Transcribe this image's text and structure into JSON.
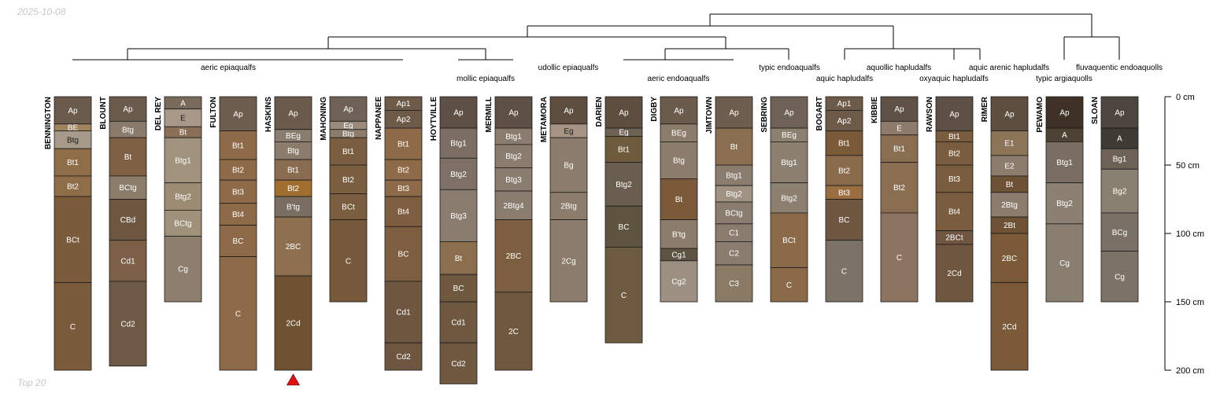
{
  "header": {
    "date": "2025-10-08"
  },
  "footer": {
    "note": "Top 20"
  },
  "chart_data": {
    "type": "soil-profile-sketch",
    "depth_unit": "cm",
    "depth_ticks": [
      {
        "value": 0,
        "label": "0 cm"
      },
      {
        "value": 50,
        "label": "50 cm"
      },
      {
        "value": 100,
        "label": "100 cm"
      },
      {
        "value": 150,
        "label": "150 cm"
      },
      {
        "value": 200,
        "label": "200 cm"
      }
    ],
    "depth_range": [
      0,
      200
    ],
    "truncated_marker_profile": "HASKINS",
    "profiles": [
      {
        "name": "BENNINGTON",
        "horizons": [
          [
            "Ap",
            0,
            20,
            "#6b5b4d"
          ],
          [
            "BE",
            20,
            25,
            "#a08460"
          ],
          [
            "Btg",
            25,
            38,
            "#a89a88"
          ],
          [
            "Bt1",
            38,
            58,
            "#8e6d48"
          ],
          [
            "Bt2",
            58,
            73,
            "#8e6d48"
          ],
          [
            "BCt",
            73,
            136,
            "#7a5c3d"
          ],
          [
            "C",
            136,
            200,
            "#7a5c3d"
          ]
        ]
      },
      {
        "name": "BLOUNT",
        "horizons": [
          [
            "Ap",
            0,
            18,
            "#6b5b4d"
          ],
          [
            "Btg",
            18,
            30,
            "#8a7a6c"
          ],
          [
            "Bt",
            30,
            58,
            "#7e6044"
          ],
          [
            "BCtg",
            58,
            75,
            "#8c7c6a"
          ],
          [
            "CBd",
            75,
            105,
            "#6e5640"
          ],
          [
            "Cd1",
            105,
            135,
            "#7c6048"
          ],
          [
            "Cd2",
            135,
            197,
            "#6e5a44"
          ]
        ]
      },
      {
        "name": "DEL REY",
        "horizons": [
          [
            "A",
            0,
            9,
            "#7a6a5c"
          ],
          [
            "E",
            9,
            22,
            "#a8988a"
          ],
          [
            "Bt",
            22,
            30,
            "#8a6e56"
          ],
          [
            "Btg1",
            30,
            63,
            "#a0927c"
          ],
          [
            "Btg2",
            63,
            83,
            "#9c8c74"
          ],
          [
            "BCtg",
            83,
            102,
            "#a0927a"
          ],
          [
            "Cg",
            102,
            150,
            "#8e7e6e"
          ]
        ]
      },
      {
        "name": "FULTON",
        "horizons": [
          [
            "Ap",
            0,
            25,
            "#6e5e50"
          ],
          [
            "Bt1",
            25,
            46,
            "#8e6a48"
          ],
          [
            "Bt2",
            46,
            61,
            "#8e6a48"
          ],
          [
            "Bt3",
            61,
            78,
            "#8e6a48"
          ],
          [
            "Bt4",
            78,
            94,
            "#8e6a48"
          ],
          [
            "BC",
            94,
            117,
            "#8e6a48"
          ],
          [
            "C",
            117,
            200,
            "#8e6a48"
          ]
        ]
      },
      {
        "name": "HASKINS",
        "horizons": [
          [
            "Ap",
            0,
            24,
            "#6b5b4d"
          ],
          [
            "BEg",
            24,
            33,
            "#8a7c6e"
          ],
          [
            "Btg",
            33,
            46,
            "#8c7c6c"
          ],
          [
            "Bt1",
            46,
            61,
            "#8a6c50"
          ],
          [
            "Bt2",
            61,
            73,
            "#a06e30"
          ],
          [
            "B'tg",
            73,
            88,
            "#7a6e62"
          ],
          [
            "2BC",
            88,
            131,
            "#8e7050"
          ],
          [
            "2Cd",
            131,
            200,
            "#6e5232"
          ]
        ]
      },
      {
        "name": "MAHONING",
        "horizons": [
          [
            "Ap",
            0,
            18,
            "#6e6256"
          ],
          [
            "Eg",
            18,
            24,
            "#9a8c7c"
          ],
          [
            "Btg",
            24,
            30,
            "#8c7c6c"
          ],
          [
            "Bt1",
            30,
            50,
            "#7a5e40"
          ],
          [
            "Bt2",
            50,
            71,
            "#7a5e40"
          ],
          [
            "BCt",
            71,
            90,
            "#7a5e40"
          ],
          [
            "C",
            90,
            150,
            "#76583a"
          ]
        ]
      },
      {
        "name": "NAPPANEE",
        "horizons": [
          [
            "Ap1",
            0,
            10,
            "#6e5a48"
          ],
          [
            "Ap2",
            10,
            23,
            "#6e5a48"
          ],
          [
            "Bt1",
            23,
            46,
            "#8e6a48"
          ],
          [
            "Bt2",
            46,
            61,
            "#8e6a48"
          ],
          [
            "Bt3",
            61,
            73,
            "#8e6a48"
          ],
          [
            "Bt4",
            73,
            95,
            "#7e5e40"
          ],
          [
            "BC",
            95,
            135,
            "#7e5e40"
          ],
          [
            "Cd1",
            135,
            180,
            "#6e5640"
          ],
          [
            "Cd2",
            180,
            200,
            "#6e5640"
          ]
        ]
      },
      {
        "name": "HOYTVILLE",
        "horizons": [
          [
            "Ap",
            0,
            23,
            "#5e5044"
          ],
          [
            "Btg1",
            23,
            45,
            "#7c6e62"
          ],
          [
            "Btg2",
            45,
            68,
            "#7e7064"
          ],
          [
            "Btg3",
            68,
            106,
            "#8a7c6e"
          ],
          [
            "Bt",
            106,
            130,
            "#8a6e4e"
          ],
          [
            "BC",
            130,
            150,
            "#6e5840"
          ],
          [
            "Cd1",
            150,
            180,
            "#6e5840"
          ],
          [
            "Cd2",
            180,
            210,
            "#6e5840"
          ]
        ]
      },
      {
        "name": "MERMILL",
        "horizons": [
          [
            "Ap",
            0,
            23,
            "#5e5044"
          ],
          [
            "Btg1",
            23,
            35,
            "#8a7c6e"
          ],
          [
            "Btg2",
            35,
            52,
            "#8a7c6e"
          ],
          [
            "Btg3",
            52,
            69,
            "#8a7c6e"
          ],
          [
            "2Btg4",
            69,
            90,
            "#8a7c6e"
          ],
          [
            "2BC",
            90,
            143,
            "#7e5e40"
          ],
          [
            "2C",
            143,
            200,
            "#70583e"
          ]
        ]
      },
      {
        "name": "METAMORA",
        "horizons": [
          [
            "Ap",
            0,
            20,
            "#5e4e40"
          ],
          [
            "Eg",
            20,
            30,
            "#a89484"
          ],
          [
            "Bg",
            30,
            70,
            "#8c7c6c"
          ],
          [
            "2Btg",
            70,
            90,
            "#8c7c6c"
          ],
          [
            "2Cg",
            90,
            150,
            "#8c7c6c"
          ]
        ]
      },
      {
        "name": "DARIEN",
        "horizons": [
          [
            "Ap",
            0,
            23,
            "#5e4e40"
          ],
          [
            "Eg",
            23,
            29,
            "#6e6254"
          ],
          [
            "Bt1",
            29,
            48,
            "#6e5a3c"
          ],
          [
            "Btg2",
            48,
            80,
            "#6a5e50"
          ],
          [
            "BC",
            80,
            110,
            "#5e5440"
          ],
          [
            "C",
            110,
            180,
            "#6e5a40"
          ]
        ]
      },
      {
        "name": "DIGBY",
        "horizons": [
          [
            "Ap",
            0,
            20,
            "#6b5b4d"
          ],
          [
            "BEg",
            20,
            33,
            "#8c7c6c"
          ],
          [
            "Btg",
            33,
            60,
            "#8c7c6c"
          ],
          [
            "Bt",
            60,
            90,
            "#7a5a38"
          ],
          [
            "B'tg",
            90,
            111,
            "#8c7c6c"
          ],
          [
            "Cg1",
            111,
            120,
            "#5e5444"
          ],
          [
            "Cg2",
            120,
            150,
            "#9c9082"
          ]
        ]
      },
      {
        "name": "JIMTOWN",
        "horizons": [
          [
            "Ap",
            0,
            23,
            "#6e5e50"
          ],
          [
            "Bt",
            23,
            50,
            "#8a6e50"
          ],
          [
            "Btg1",
            50,
            65,
            "#8a7c6e"
          ],
          [
            "Btg2",
            65,
            77,
            "#a09282"
          ],
          [
            "BCtg",
            77,
            93,
            "#8a7c6e"
          ],
          [
            "C1",
            93,
            106,
            "#8a7c6e"
          ],
          [
            "C2",
            106,
            123,
            "#8a7c6e"
          ],
          [
            "C3",
            123,
            150,
            "#8a7a66"
          ]
        ]
      },
      {
        "name": "SEBRING",
        "horizons": [
          [
            "Ap",
            0,
            23,
            "#6e6256"
          ],
          [
            "BEg",
            23,
            33,
            "#8c8070"
          ],
          [
            "Btg1",
            33,
            63,
            "#8c8070"
          ],
          [
            "Btg2",
            63,
            85,
            "#8c8070"
          ],
          [
            "BCt",
            85,
            125,
            "#8a6a48"
          ],
          [
            "C",
            125,
            150,
            "#8a6a48"
          ]
        ]
      },
      {
        "name": "BOGART",
        "horizons": [
          [
            "Ap1",
            0,
            10,
            "#6e5a48"
          ],
          [
            "Ap2",
            10,
            25,
            "#6e5a48"
          ],
          [
            "Bt1",
            25,
            43,
            "#7a5a38"
          ],
          [
            "Bt2",
            43,
            65,
            "#8a6c4c"
          ],
          [
            "Bt3",
            65,
            75,
            "#9a6e40"
          ],
          [
            "BC",
            75,
            105,
            "#6e5640"
          ],
          [
            "C",
            105,
            150,
            "#7c7266"
          ]
        ]
      },
      {
        "name": "KIBBIE",
        "horizons": [
          [
            "Ap",
            0,
            18,
            "#5e5246"
          ],
          [
            "E",
            18,
            28,
            "#8c7a6a"
          ],
          [
            "Bt1",
            28,
            48,
            "#8a6e52"
          ],
          [
            "Bt2",
            48,
            85,
            "#8a6e52"
          ],
          [
            "C",
            85,
            150,
            "#8c7460"
          ]
        ]
      },
      {
        "name": "RAWSON",
        "horizons": [
          [
            "Ap",
            0,
            25,
            "#5e5044"
          ],
          [
            "Bt1",
            25,
            33,
            "#7a5c3e"
          ],
          [
            "Bt2",
            33,
            50,
            "#7a5c3e"
          ],
          [
            "Bt3",
            50,
            70,
            "#7a5c3e"
          ],
          [
            "Bt4",
            70,
            98,
            "#7a5c3e"
          ],
          [
            "2BCt",
            98,
            108,
            "#6e5640"
          ],
          [
            "2Cd",
            108,
            150,
            "#6e5640"
          ]
        ]
      },
      {
        "name": "RIMER",
        "horizons": [
          [
            "Ap",
            0,
            25,
            "#5e4e40"
          ],
          [
            "E1",
            25,
            43,
            "#8c7458"
          ],
          [
            "E2",
            43,
            58,
            "#8c7c6c"
          ],
          [
            "Bt",
            58,
            70,
            "#6e5236"
          ],
          [
            "2Btg",
            70,
            88,
            "#8c7c6c"
          ],
          [
            "2Bt",
            88,
            100,
            "#6e5236"
          ],
          [
            "2BC",
            100,
            136,
            "#7a5a38"
          ],
          [
            "2Cd",
            136,
            200,
            "#7a5a38"
          ]
        ]
      },
      {
        "name": "PEWAMO",
        "horizons": [
          [
            "Ap",
            0,
            23,
            "#3e3226"
          ],
          [
            "A",
            23,
            33,
            "#4e4234"
          ],
          [
            "Btg1",
            33,
            63,
            "#7a6e62"
          ],
          [
            "Btg2",
            63,
            93,
            "#8c8072"
          ],
          [
            "Cg",
            93,
            150,
            "#8a7e70"
          ]
        ]
      },
      {
        "name": "SLOAN",
        "horizons": [
          [
            "Ap",
            0,
            23,
            "#4e463e"
          ],
          [
            "A",
            23,
            38,
            "#3e3a34"
          ],
          [
            "Bg1",
            38,
            53,
            "#6e6256"
          ],
          [
            "Bg2",
            53,
            85,
            "#8a8072"
          ],
          [
            "BCg",
            85,
            113,
            "#7a7066"
          ],
          [
            "Cg",
            113,
            150,
            "#7c7266"
          ]
        ]
      }
    ],
    "group_labels": [
      {
        "text": "aeric epiaqualfs"
      },
      {
        "text": "mollic epiaqualfs"
      },
      {
        "text": "udollic epiaqualfs"
      },
      {
        "text": "aeric endoaqualfs"
      },
      {
        "text": "typic endoaqualfs"
      },
      {
        "text": "aquic hapludalfs"
      },
      {
        "text": "aquollic hapludalfs"
      },
      {
        "text": "oxyaquic hapludalfs"
      },
      {
        "text": "aquic arenic hapludalfs"
      },
      {
        "text": "typic argiaquolls"
      },
      {
        "text": "fluvaquentic endoaquolls"
      }
    ]
  }
}
